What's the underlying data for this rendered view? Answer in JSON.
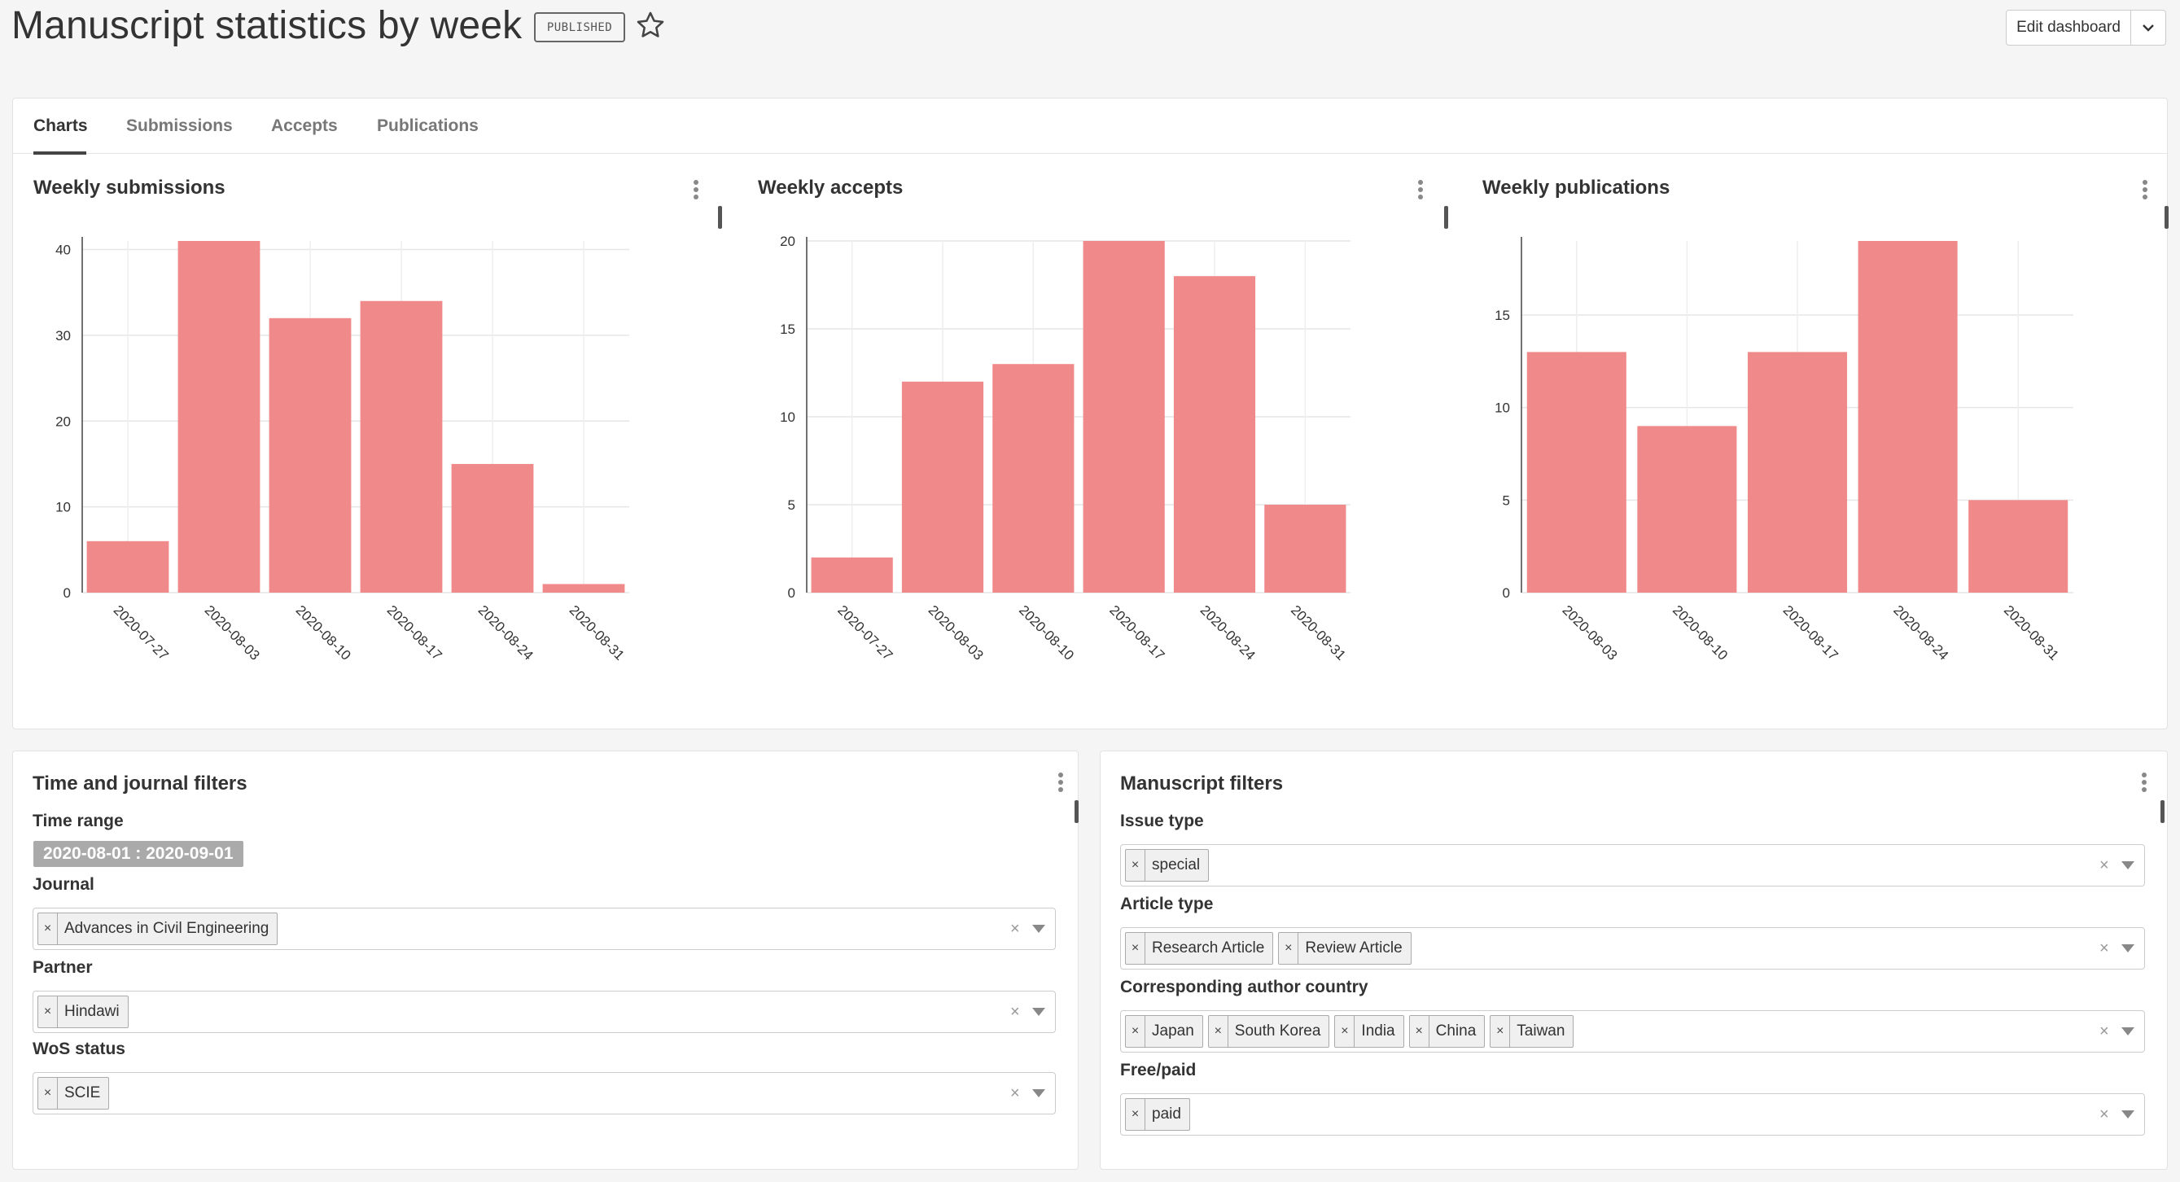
{
  "header": {
    "title": "Manuscript statistics by week",
    "status": "PUBLISHED",
    "edit_label": "Edit dashboard"
  },
  "tabs": [
    {
      "label": "Charts"
    },
    {
      "label": "Submissions"
    },
    {
      "label": "Accepts"
    },
    {
      "label": "Publications"
    }
  ],
  "accent_color": "#f08a8a",
  "chart_data": [
    {
      "type": "bar",
      "title": "Weekly submissions",
      "categories": [
        "2020-07-27",
        "2020-08-03",
        "2020-08-10",
        "2020-08-17",
        "2020-08-24",
        "2020-08-31"
      ],
      "values": [
        6,
        41,
        32,
        34,
        15,
        1
      ],
      "ylim": [
        0,
        41
      ],
      "yticks": [
        0,
        10,
        20,
        30,
        40
      ],
      "xlabel": "",
      "ylabel": "",
      "grid": true
    },
    {
      "type": "bar",
      "title": "Weekly accepts",
      "categories": [
        "2020-07-27",
        "2020-08-03",
        "2020-08-10",
        "2020-08-17",
        "2020-08-24",
        "2020-08-31"
      ],
      "values": [
        2,
        12,
        13,
        20,
        18,
        5
      ],
      "ylim": [
        0,
        20
      ],
      "yticks": [
        0,
        5,
        10,
        15,
        20
      ],
      "xlabel": "",
      "ylabel": "",
      "grid": true
    },
    {
      "type": "bar",
      "title": "Weekly publications",
      "categories": [
        "2020-08-03",
        "2020-08-10",
        "2020-08-17",
        "2020-08-24",
        "2020-08-31"
      ],
      "values": [
        13,
        9,
        13,
        19,
        5
      ],
      "ylim": [
        0,
        19
      ],
      "yticks": [
        0,
        5,
        10,
        15
      ],
      "xlabel": "",
      "ylabel": "",
      "grid": true
    }
  ],
  "filters_left": {
    "title": "Time and journal filters",
    "time_range_label": "Time range",
    "time_range_value": "2020-08-01 : 2020-09-01",
    "journal_label": "Journal",
    "journal_tags": [
      "Advances in Civil Engineering"
    ],
    "partner_label": "Partner",
    "partner_tags": [
      "Hindawi"
    ],
    "wos_label": "WoS status",
    "wos_tags": [
      "SCIE"
    ]
  },
  "filters_right": {
    "title": "Manuscript filters",
    "issue_type_label": "Issue type",
    "issue_type_tags": [
      "special"
    ],
    "article_type_label": "Article type",
    "article_type_tags": [
      "Research Article",
      "Review Article"
    ],
    "country_label": "Corresponding author country",
    "country_tags": [
      "Japan",
      "South Korea",
      "India",
      "China",
      "Taiwan"
    ],
    "freepaid_label": "Free/paid",
    "freepaid_tags": [
      "paid"
    ]
  }
}
